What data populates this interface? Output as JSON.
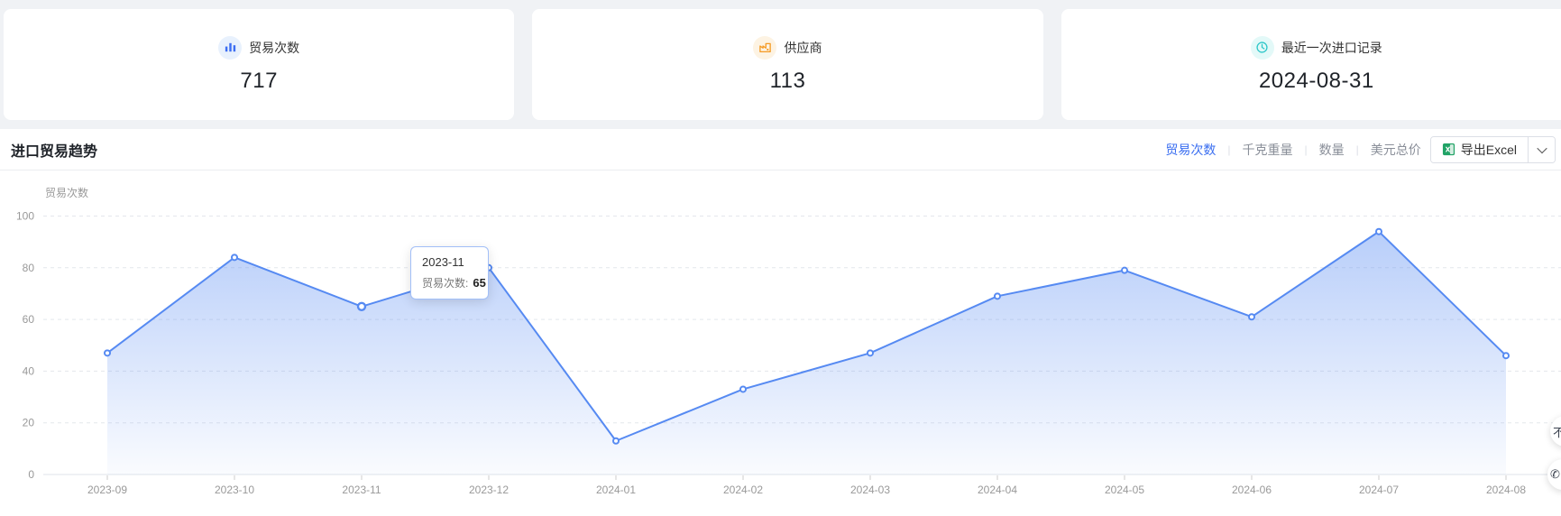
{
  "cards": [
    {
      "icon": "bar-chart-icon",
      "label": "贸易次数",
      "value": "717"
    },
    {
      "icon": "factory-icon",
      "label": "供应商",
      "value": "113"
    },
    {
      "icon": "clock-icon",
      "label": "最近一次进口记录",
      "value": "2024-08-31"
    }
  ],
  "section": {
    "title": "进口贸易趋势",
    "tabs": [
      {
        "label": "贸易次数",
        "active": true
      },
      {
        "label": "千克重量",
        "active": false
      },
      {
        "label": "数量",
        "active": false
      },
      {
        "label": "美元总价",
        "active": false
      }
    ],
    "export_button": {
      "icon": "excel-icon",
      "label": "导出Excel"
    }
  },
  "chart_data": {
    "type": "area",
    "title": "进口贸易趋势",
    "ylabel": "贸易次数",
    "x": [
      "2023-09",
      "2023-10",
      "2023-11",
      "2023-12",
      "2024-01",
      "2024-02",
      "2024-03",
      "2024-04",
      "2024-05",
      "2024-06",
      "2024-07",
      "2024-08"
    ],
    "series": [
      {
        "name": "贸易次数",
        "values": [
          47,
          84,
          65,
          80,
          13,
          33,
          47,
          69,
          79,
          61,
          94,
          46
        ]
      }
    ],
    "ylim": [
      0,
      100
    ],
    "yticks": [
      0,
      20,
      40,
      60,
      80,
      100
    ],
    "grid": "dashed-horizontal",
    "legend_position": "none",
    "line_color": "#568af2",
    "area_top_color": "rgba(86,138,242,0.42)",
    "area_bottom_color": "rgba(86,138,242,0.03)",
    "hover_index": 2,
    "tooltip": {
      "title": "2023-11",
      "label": "贸易次数:",
      "value": "65"
    }
  },
  "colors": {
    "accent": "#3a6ef0",
    "card_icon_blue": "#3d6ef2",
    "card_icon_orange": "#f59a23",
    "card_icon_teal": "#2fc7c9",
    "excel_green": "#21a366"
  },
  "floating_widgets": [
    {
      "glyph": "不"
    },
    {
      "glyph": "✆"
    }
  ]
}
